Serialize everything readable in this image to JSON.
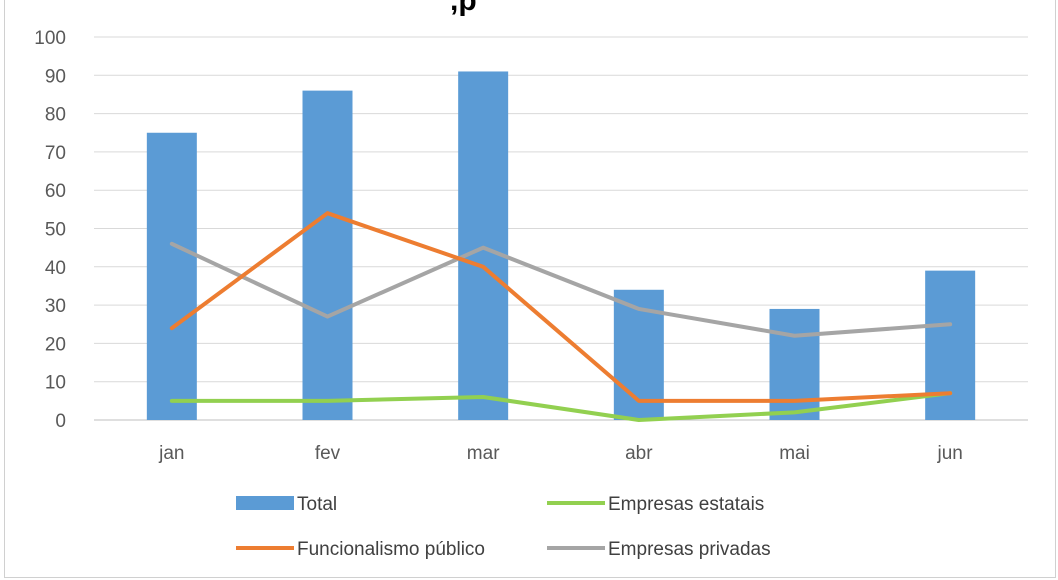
{
  "title_fragment": ",p",
  "colors": {
    "total": "#5b9bd5",
    "estatais": "#92d050",
    "funcionalismo": "#ed7d31",
    "privadas": "#a5a5a5",
    "grid": "#d9d9d9",
    "axis": "#bfbfbf"
  },
  "chart_data": {
    "type": "bar",
    "categories": [
      "jan",
      "fev",
      "mar",
      "abr",
      "mai",
      "jun"
    ],
    "ylim": [
      0,
      100
    ],
    "yticks": [
      0,
      10,
      20,
      30,
      40,
      50,
      60,
      70,
      80,
      90,
      100
    ],
    "grid": true,
    "legend_position": "bottom",
    "series": [
      {
        "name": "Total",
        "kind": "bar",
        "values": [
          75,
          86,
          91,
          34,
          29,
          39
        ]
      },
      {
        "name": "Empresas estatais",
        "kind": "line",
        "values": [
          5,
          5,
          6,
          0,
          2,
          7
        ]
      },
      {
        "name": "Funcionalismo público",
        "kind": "line",
        "values": [
          24,
          54,
          40,
          5,
          5,
          7
        ]
      },
      {
        "name": "Empresas privadas",
        "kind": "line",
        "values": [
          46,
          27,
          45,
          29,
          22,
          25
        ]
      }
    ]
  }
}
